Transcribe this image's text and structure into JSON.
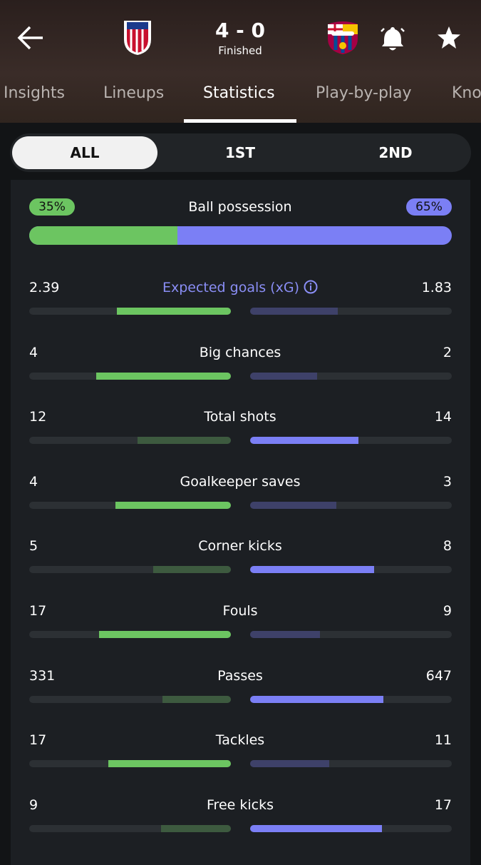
{
  "header": {
    "score": "4 - 0",
    "status": "Finished"
  },
  "tabs": [
    "Insights",
    "Lineups",
    "Statistics",
    "Play-by-play",
    "Kno"
  ],
  "periods": [
    "ALL",
    "1ST",
    "2ND"
  ],
  "possession": {
    "label": "Ball possession",
    "home": {
      "value": 35,
      "label": "35%"
    },
    "away": {
      "value": 65,
      "label": "65%"
    }
  },
  "stats": [
    {
      "label": "Expected goals (xG)",
      "home": 2.39,
      "away": 1.83
    },
    {
      "label": "Big chances",
      "home": 4,
      "away": 2
    },
    {
      "label": "Total shots",
      "home": 12,
      "away": 14
    },
    {
      "label": "Goalkeeper saves",
      "home": 4,
      "away": 3
    },
    {
      "label": "Corner kicks",
      "home": 5,
      "away": 8
    },
    {
      "label": "Fouls",
      "home": 17,
      "away": 9
    },
    {
      "label": "Passes",
      "home": 331,
      "away": 647
    },
    {
      "label": "Tackles",
      "home": 17,
      "away": 11
    },
    {
      "label": "Free kicks",
      "home": 9,
      "away": 17
    }
  ]
}
